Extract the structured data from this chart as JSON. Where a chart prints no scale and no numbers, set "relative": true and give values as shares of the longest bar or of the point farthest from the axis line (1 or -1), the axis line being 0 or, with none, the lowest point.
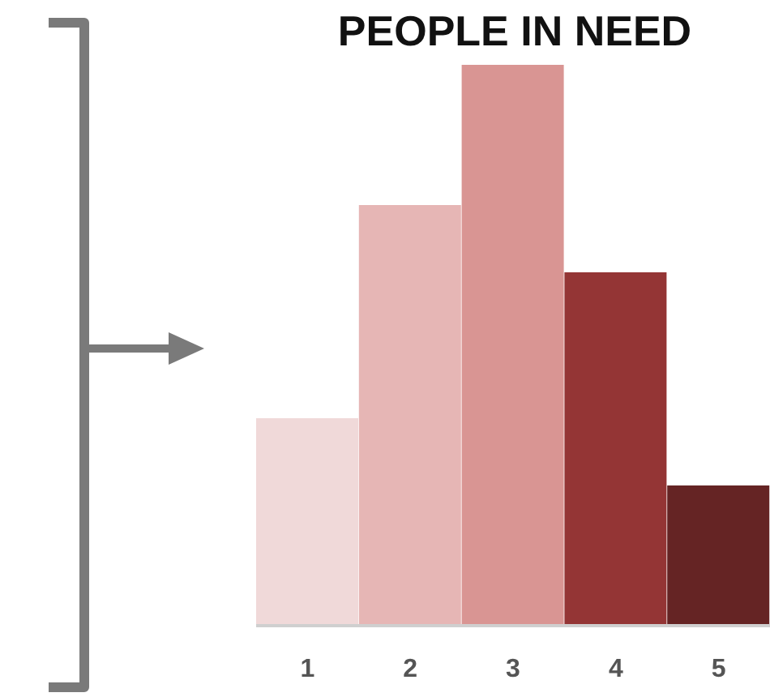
{
  "chart_data": {
    "type": "bar",
    "title": "PEOPLE IN NEED",
    "relative": true,
    "categories": [
      "1",
      "2",
      "3",
      "4",
      "5"
    ],
    "values": [
      0.37,
      0.75,
      1,
      0.63,
      0.25
    ],
    "colors": [
      "#f0d9d9",
      "#e6b6b5",
      "#d99593",
      "#943535",
      "#652424"
    ],
    "grid": false,
    "legend": false
  }
}
